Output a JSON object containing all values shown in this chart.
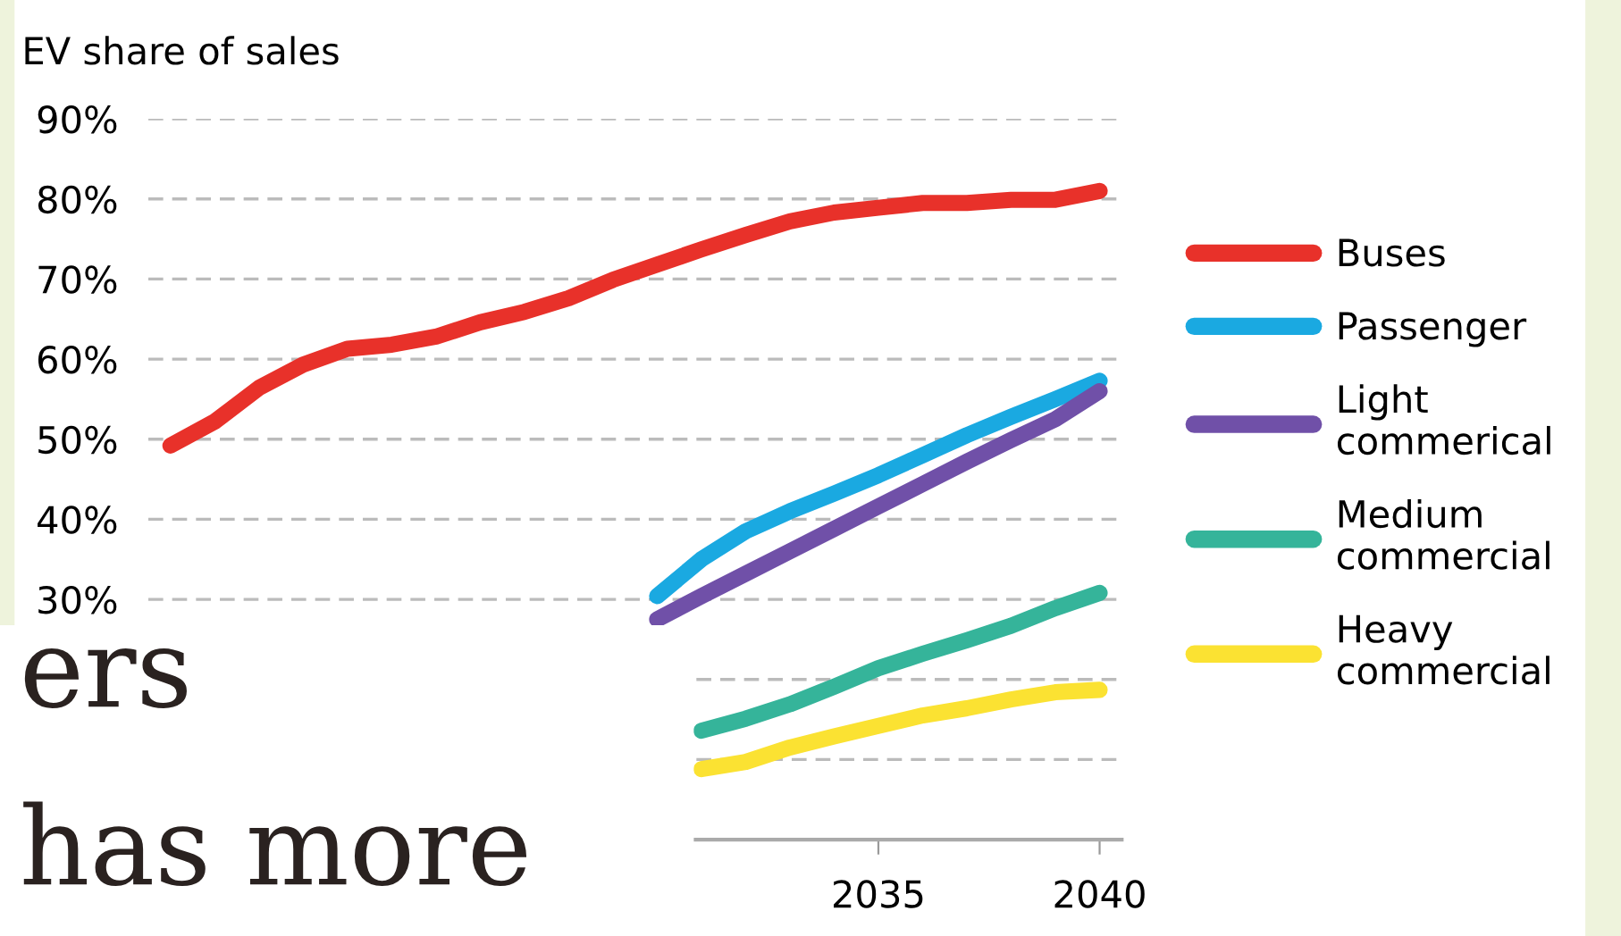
{
  "chart_data": {
    "type": "line",
    "title": "EV share of sales",
    "x": [
      2019,
      2020,
      2021,
      2022,
      2023,
      2024,
      2025,
      2026,
      2027,
      2028,
      2029,
      2030,
      2031,
      2032,
      2033,
      2034,
      2035,
      2036,
      2037,
      2038,
      2039,
      2040
    ],
    "series": [
      {
        "name": "Buses",
        "color": "#e8312a",
        "values": [
          49.2,
          52.2,
          56.4,
          59.3,
          61.3,
          61.8,
          62.8,
          64.6,
          65.9,
          67.6,
          69.9,
          71.8,
          73.7,
          75.5,
          77.2,
          78.3,
          78.9,
          79.5,
          79.5,
          79.9,
          79.9,
          81.0
        ]
      },
      {
        "name": "Passenger",
        "color": "#1aa9e1",
        "values": [
          null,
          null,
          null,
          null,
          null,
          null,
          null,
          null,
          null,
          null,
          null,
          30.4,
          35.0,
          38.5,
          41.0,
          43.2,
          45.5,
          48.0,
          50.5,
          52.8,
          55.0,
          57.3
        ]
      },
      {
        "name": "Light\ncommerical",
        "color": "#7050a8",
        "values": [
          null,
          null,
          null,
          null,
          null,
          null,
          null,
          null,
          null,
          null,
          null,
          27.5,
          30.4,
          33.2,
          36.0,
          38.8,
          41.6,
          44.4,
          47.2,
          49.9,
          52.5,
          56.0
        ]
      },
      {
        "name": "Medium\ncommercial",
        "color": "#35b49a",
        "values": [
          null,
          null,
          null,
          null,
          null,
          null,
          null,
          null,
          null,
          null,
          null,
          null,
          13.6,
          15.1,
          16.9,
          19.1,
          21.4,
          23.2,
          24.9,
          26.7,
          28.9,
          30.8
        ]
      },
      {
        "name": "Heavy\ncommercial",
        "color": "#fbe232",
        "values": [
          null,
          null,
          null,
          null,
          null,
          null,
          null,
          null,
          null,
          null,
          null,
          null,
          8.8,
          9.7,
          11.5,
          12.9,
          14.2,
          15.5,
          16.4,
          17.5,
          18.4,
          18.7
        ]
      }
    ],
    "xlim": [
      2018.5,
      2040.5
    ],
    "xticks": [
      2035,
      2040
    ],
    "ylim": [
      0,
      90
    ],
    "yticks": [
      {
        "value": 0,
        "label": null
      },
      {
        "value": 10,
        "label": null
      },
      {
        "value": 20,
        "label": null
      },
      {
        "value": 30,
        "label": "30%"
      },
      {
        "value": 40,
        "label": "40%"
      },
      {
        "value": 50,
        "label": "50%"
      },
      {
        "value": 60,
        "label": "60%"
      },
      {
        "value": 70,
        "label": "70%"
      },
      {
        "value": 80,
        "label": "80%"
      },
      {
        "value": 90,
        "label": "90%"
      }
    ],
    "grid": "y",
    "legend": "right",
    "line_style": "solid",
    "marker": "none",
    "annotations": [
      "ers",
      "has more"
    ]
  }
}
